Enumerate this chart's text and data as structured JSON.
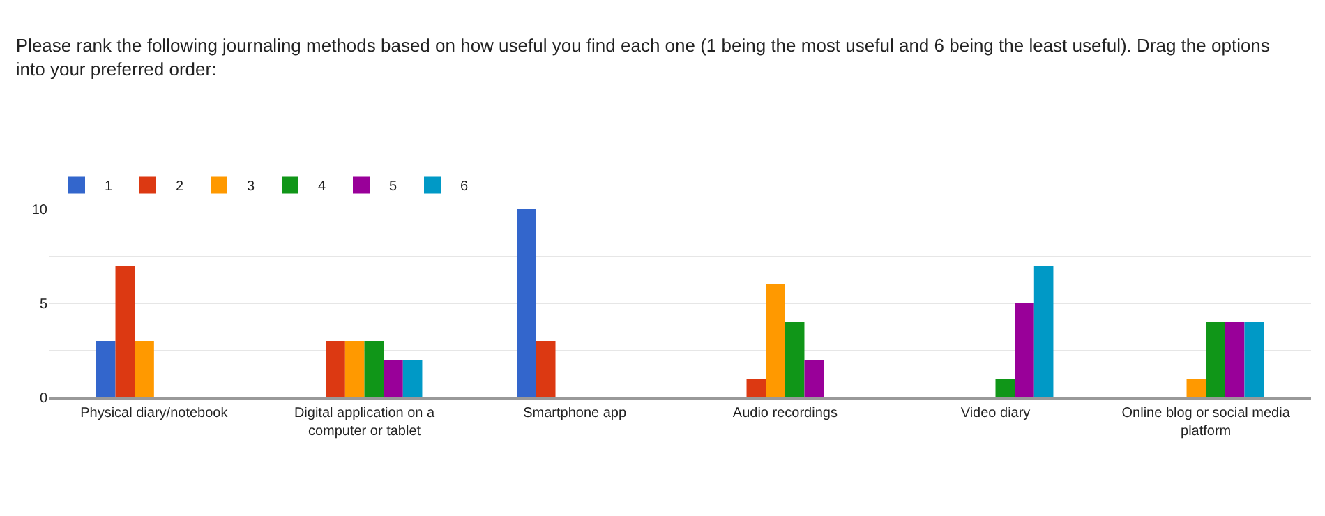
{
  "chart_data": {
    "type": "bar",
    "title": "Please rank the following journaling methods based on how useful you find each one (1 being the most useful and 6 being the least useful). Drag the options into your preferred order:",
    "categories": [
      "Physical diary/notebook",
      "Digital application on a computer or tablet",
      "Smartphone app",
      "Audio recordings",
      "Video diary",
      "Online blog or social media platform"
    ],
    "series": [
      {
        "name": "1",
        "color": "#3366cc",
        "values": [
          3,
          0,
          10,
          0,
          0,
          0
        ]
      },
      {
        "name": "2",
        "color": "#dc3912",
        "values": [
          7,
          3,
          3,
          1,
          0,
          0
        ]
      },
      {
        "name": "3",
        "color": "#ff9900",
        "values": [
          3,
          3,
          0,
          6,
          0,
          1
        ]
      },
      {
        "name": "4",
        "color": "#109618",
        "values": [
          0,
          3,
          0,
          4,
          1,
          4
        ]
      },
      {
        "name": "5",
        "color": "#990099",
        "values": [
          0,
          2,
          0,
          2,
          5,
          4
        ]
      },
      {
        "name": "6",
        "color": "#0099c6",
        "values": [
          0,
          2,
          0,
          0,
          7,
          4
        ]
      }
    ],
    "ylim": [
      0,
      10
    ],
    "yticks": [
      0,
      {
        "value": 2.5,
        "label": null
      },
      5,
      {
        "value": 7.5,
        "label": null
      },
      10
    ],
    "grid": "y",
    "legend": "top left"
  }
}
